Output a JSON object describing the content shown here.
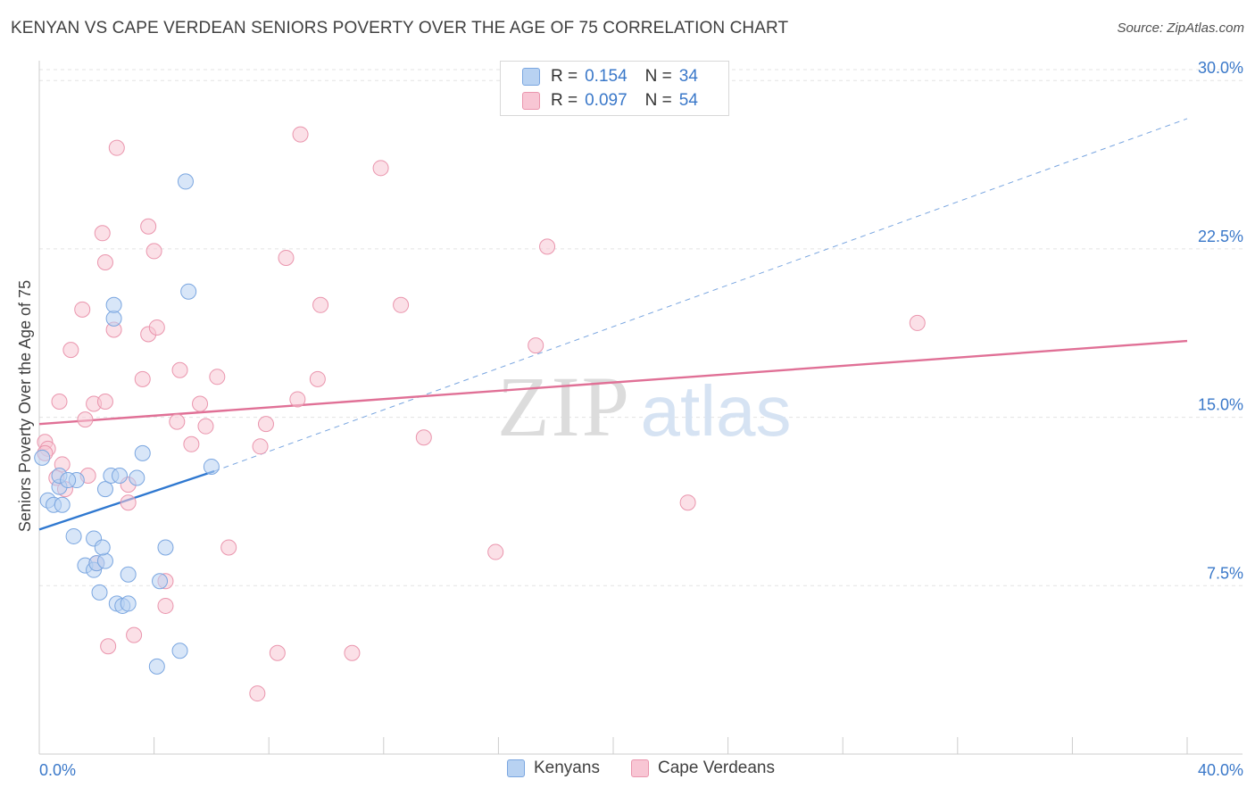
{
  "title": "KENYAN VS CAPE VERDEAN SENIORS POVERTY OVER THE AGE OF 75 CORRELATION CHART",
  "source": "Source: ZipAtlas.com",
  "watermark": {
    "zip": "ZIP",
    "atlas": "atlas"
  },
  "legend": {
    "series": [
      {
        "name": "Kenyans",
        "r_label": "R =",
        "r": "0.154",
        "n_label": "N =",
        "n": "34",
        "fill": "#b8d2f2",
        "stroke": "#7aa6e0"
      },
      {
        "name": "Cape Verdeans",
        "r_label": "R =",
        "r": "0.097",
        "n_label": "N =",
        "n": "54",
        "fill": "#f8c6d4",
        "stroke": "#ea95ad"
      }
    ]
  },
  "chart_data": {
    "type": "scatter",
    "title": "KENYAN VS CAPE VERDEAN SENIORS POVERTY OVER THE AGE OF 75 CORRELATION CHART",
    "xlabel": "",
    "ylabel": "Seniors Poverty Over the Age of 75",
    "xlim": [
      0,
      40
    ],
    "ylim": [
      0,
      31.2
    ],
    "x_tick_labels": [
      {
        "value": 0,
        "label": "0.0%"
      },
      {
        "value": 40,
        "label": "40.0%"
      }
    ],
    "x_minor_ticks": [
      0,
      4,
      8,
      12,
      16,
      20,
      24,
      28,
      32,
      36,
      40
    ],
    "y_ticks": [
      {
        "value": 7.5,
        "label": "7.5%"
      },
      {
        "value": 15.0,
        "label": "15.0%"
      },
      {
        "value": 22.5,
        "label": "22.5%"
      },
      {
        "value": 30.0,
        "label": "30.0%"
      }
    ],
    "grid": true,
    "series": [
      {
        "name": "Kenyans",
        "color": "#7aa6e0",
        "fill": "#b8d2f2",
        "line_color": "#2f78d0",
        "points": [
          [
            0.1,
            13.2
          ],
          [
            0.3,
            11.3
          ],
          [
            0.5,
            11.1
          ],
          [
            0.8,
            11.1
          ],
          [
            0.7,
            11.9
          ],
          [
            0.7,
            12.4
          ],
          [
            1.2,
            9.7
          ],
          [
            1.3,
            12.2
          ],
          [
            1.6,
            8.4
          ],
          [
            1.9,
            8.2
          ],
          [
            2.0,
            8.5
          ],
          [
            1.9,
            9.6
          ],
          [
            2.1,
            7.2
          ],
          [
            2.3,
            8.6
          ],
          [
            2.2,
            9.2
          ],
          [
            2.3,
            11.8
          ],
          [
            2.5,
            12.4
          ],
          [
            2.6,
            19.4
          ],
          [
            2.6,
            20.0
          ],
          [
            2.7,
            6.7
          ],
          [
            2.9,
            6.6
          ],
          [
            3.1,
            6.7
          ],
          [
            3.1,
            8.0
          ],
          [
            3.4,
            12.3
          ],
          [
            3.6,
            13.4
          ],
          [
            4.1,
            3.9
          ],
          [
            4.2,
            7.7
          ],
          [
            4.4,
            9.2
          ],
          [
            4.9,
            4.6
          ],
          [
            5.1,
            25.5
          ],
          [
            5.2,
            20.6
          ],
          [
            6.0,
            12.8
          ],
          [
            2.8,
            12.4
          ],
          [
            1.0,
            12.2
          ]
        ],
        "trend": {
          "x": [
            0,
            6.1
          ],
          "y": [
            10.0,
            12.6
          ],
          "dashed_extension": {
            "x": [
              6.1,
              40
            ],
            "y": [
              12.6,
              28.3
            ]
          }
        }
      },
      {
        "name": "Cape Verdeans",
        "color": "#ea95ad",
        "fill": "#f8c6d4",
        "line_color": "#e07096",
        "points": [
          [
            0.2,
            13.9
          ],
          [
            0.3,
            13.6
          ],
          [
            0.6,
            12.3
          ],
          [
            0.7,
            15.7
          ],
          [
            0.8,
            12.9
          ],
          [
            0.9,
            11.8
          ],
          [
            1.1,
            18.0
          ],
          [
            1.5,
            19.8
          ],
          [
            1.6,
            14.9
          ],
          [
            1.7,
            12.4
          ],
          [
            1.9,
            15.6
          ],
          [
            2.0,
            8.5
          ],
          [
            2.2,
            23.2
          ],
          [
            2.3,
            21.9
          ],
          [
            2.3,
            15.7
          ],
          [
            2.4,
            4.8
          ],
          [
            2.6,
            18.9
          ],
          [
            2.7,
            27.0
          ],
          [
            3.1,
            12.0
          ],
          [
            3.1,
            11.2
          ],
          [
            3.3,
            5.3
          ],
          [
            3.6,
            16.7
          ],
          [
            3.8,
            18.7
          ],
          [
            3.8,
            23.5
          ],
          [
            4.0,
            22.4
          ],
          [
            4.1,
            19.0
          ],
          [
            4.4,
            7.7
          ],
          [
            4.4,
            6.6
          ],
          [
            4.8,
            14.8
          ],
          [
            4.9,
            17.1
          ],
          [
            5.3,
            13.8
          ],
          [
            5.6,
            15.6
          ],
          [
            5.8,
            14.6
          ],
          [
            6.2,
            16.8
          ],
          [
            6.6,
            9.2
          ],
          [
            7.6,
            2.7
          ],
          [
            7.7,
            13.7
          ],
          [
            7.9,
            14.7
          ],
          [
            8.3,
            4.5
          ],
          [
            8.6,
            22.1
          ],
          [
            9.0,
            15.8
          ],
          [
            9.1,
            27.6
          ],
          [
            9.7,
            16.7
          ],
          [
            9.8,
            20.0
          ],
          [
            10.9,
            4.5
          ],
          [
            11.9,
            26.1
          ],
          [
            12.6,
            20.0
          ],
          [
            13.4,
            14.1
          ],
          [
            15.9,
            9.0
          ],
          [
            17.3,
            18.2
          ],
          [
            17.7,
            22.6
          ],
          [
            22.6,
            11.2
          ],
          [
            30.6,
            19.2
          ],
          [
            0.2,
            13.4
          ]
        ],
        "trend": {
          "x": [
            0,
            40
          ],
          "y": [
            14.7,
            18.4
          ]
        }
      }
    ]
  }
}
